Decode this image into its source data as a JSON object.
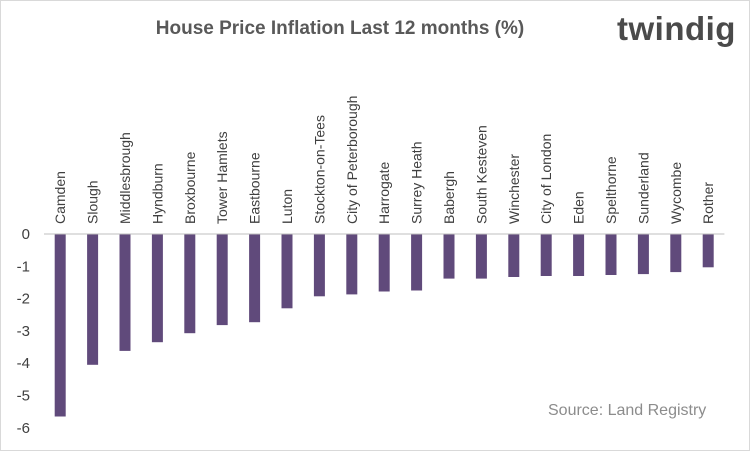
{
  "logo_text": "twindig",
  "source_text": "Source: Land Registry",
  "chart_data": {
    "type": "bar",
    "title": "House Price Inflation Last 12 months (%)",
    "categories": [
      "Camden",
      "Slough",
      "Middlesbrough",
      "Hyndburn",
      "Broxbourne",
      "Tower Hamlets",
      "Eastbourne",
      "Luton",
      "Stockton-on-Tees",
      "City of Peterborough",
      "Harrogate",
      "Surrey Heath",
      "Babergh",
      "South Kesteven",
      "Winchester",
      "City of London",
      "Eden",
      "Spelthorne",
      "Sunderland",
      "Wycombe",
      "Rother"
    ],
    "values": [
      -5.65,
      -4.05,
      -3.62,
      -3.35,
      -3.07,
      -2.82,
      -2.73,
      -2.3,
      -1.93,
      -1.87,
      -1.78,
      -1.75,
      -1.38,
      -1.38,
      -1.33,
      -1.3,
      -1.3,
      -1.27,
      -1.24,
      -1.18,
      -1.03
    ],
    "yticks": [
      "0",
      "-1",
      "-2",
      "-3",
      "-4",
      "-5",
      "-6"
    ],
    "ylim": [
      -6,
      0
    ],
    "bar_color": "#604a7b",
    "grid": false
  }
}
